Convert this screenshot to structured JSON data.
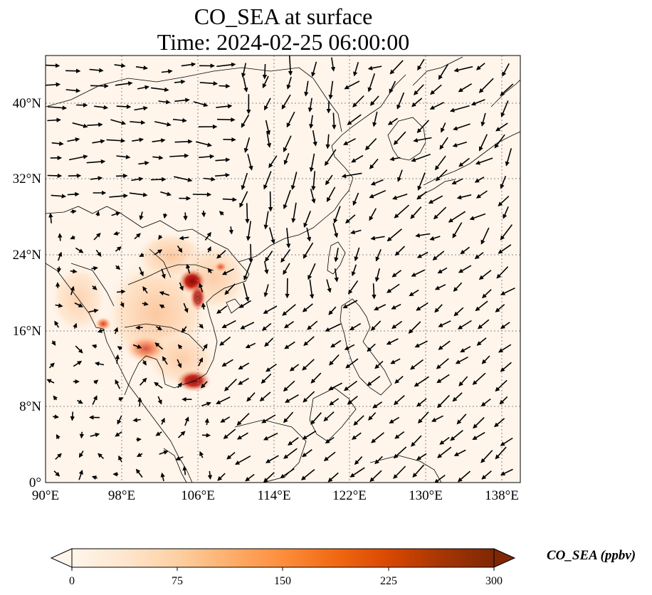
{
  "title": {
    "line1": "CO_SEA at surface",
    "line2": "Time: 2024-02-25 06:00:00"
  },
  "map": {
    "lon_range": [
      90,
      140
    ],
    "lat_range": [
      0,
      45
    ],
    "gridlines": true,
    "x_ticks": [
      "90°E",
      "98°E",
      "106°E",
      "114°E",
      "122°E",
      "130°E",
      "138°E"
    ],
    "y_ticks": [
      "0°",
      "8°N",
      "16°N",
      "24°N",
      "32°N",
      "40°N"
    ],
    "variable": "CO_SEA",
    "high_concentration_areas": [
      {
        "lon": 105.8,
        "lat": 20.8,
        "level": "300"
      },
      {
        "lon": 106.6,
        "lat": 10.8,
        "level": "250"
      },
      {
        "lon": 96.3,
        "lat": 16.9,
        "level": "200"
      },
      {
        "lon": 100.5,
        "lat": 13.8,
        "level": "150"
      },
      {
        "lon": 102.0,
        "lat": 18.0,
        "level": "100"
      }
    ],
    "wind_vectors": "surface wind arrows"
  },
  "colorbar": {
    "label": "CO_SEA (ppbv)",
    "ticks": [
      "0",
      "75",
      "150",
      "225",
      "300"
    ],
    "range": [
      0,
      300
    ],
    "extend": "both",
    "colormap": [
      "#fff5eb",
      "#fee6ce",
      "#fdd0a2",
      "#fdae6b",
      "#fd8d3c",
      "#f16913",
      "#d94801",
      "#a63603",
      "#7f2704"
    ]
  }
}
